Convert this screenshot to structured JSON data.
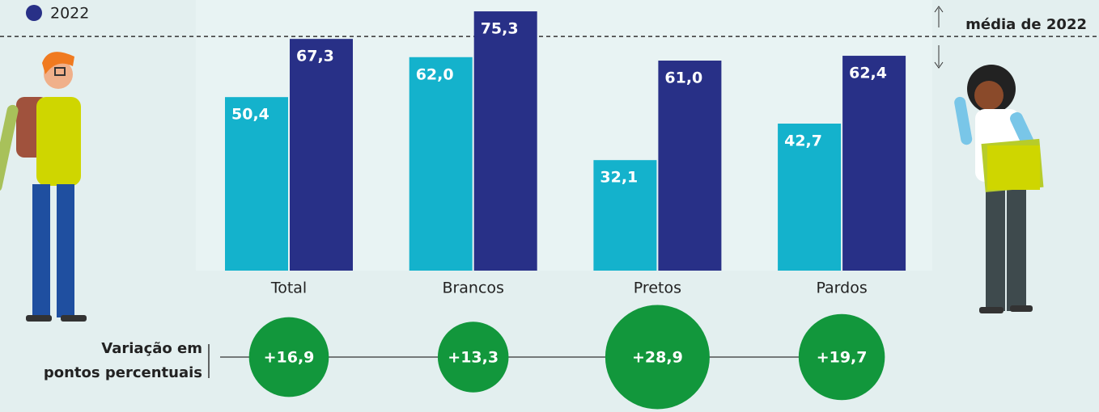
{
  "chart_data": {
    "type": "bar",
    "categories": [
      "Total",
      "Brancos",
      "Pretos",
      "Pardos"
    ],
    "series": [
      {
        "color": "#14b2cc",
        "values": [
          50.4,
          62.0,
          32.1,
          42.7
        ],
        "value_labels": [
          "50,4",
          "62,0",
          "32,1",
          "42,7"
        ]
      },
      {
        "name": "2022",
        "color": "#283087",
        "values": [
          67.3,
          75.3,
          61.0,
          62.4
        ],
        "value_labels": [
          "67,3",
          "75,3",
          "61,0",
          "62,4"
        ]
      }
    ],
    "ylim": [
      0,
      78.6
    ],
    "legend": "top-left",
    "mean_line": {
      "value": 68.0,
      "label": "média de 2022"
    },
    "variation": {
      "label": [
        "Variação em",
        "pontos percentuais"
      ],
      "color": "#12973c",
      "values": [
        16.9,
        13.3,
        28.9,
        19.7
      ],
      "value_labels": [
        "+16,9",
        "+13,3",
        "+28,9",
        "+19,7"
      ]
    }
  }
}
